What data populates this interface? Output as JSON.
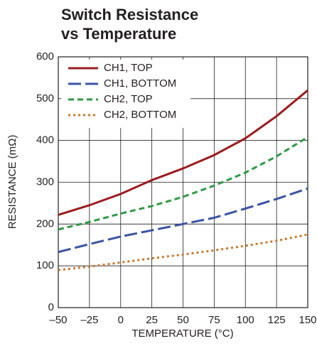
{
  "chart_data": {
    "type": "line",
    "title": [
      "Switch Resistance",
      "vs Temperature"
    ],
    "xlabel": "TEMPERATURE (°C)",
    "ylabel": "RESISTANCE (mΩ)",
    "x": [
      -50,
      -25,
      0,
      25,
      50,
      75,
      100,
      125,
      150
    ],
    "series": [
      {
        "name": "CH1, TOP",
        "color": "#9b1c1f",
        "dash": "solid",
        "values": [
          222,
          245,
          272,
          305,
          333,
          365,
          405,
          458,
          520
        ]
      },
      {
        "name": "CH1, BOTTOM",
        "color": "#3a54a4",
        "dash": "long",
        "values": [
          133,
          152,
          170,
          185,
          200,
          215,
          237,
          260,
          285
        ]
      },
      {
        "name": "CH2, TOP",
        "color": "#2e9a46",
        "dash": "medium",
        "values": [
          187,
          205,
          225,
          243,
          265,
          292,
          323,
          362,
          408
        ]
      },
      {
        "name": "CH2, BOTTOM",
        "color": "#c7782c",
        "dash": "dotted",
        "values": [
          90,
          98,
          108,
          118,
          127,
          137,
          148,
          160,
          175
        ]
      }
    ],
    "xlim": [
      -50,
      150
    ],
    "xticks": [
      {
        "value": -50,
        "label": "–50"
      },
      {
        "value": -25,
        "label": "–25"
      },
      0,
      25,
      50,
      75,
      100,
      125,
      150
    ],
    "ylim": [
      0,
      600
    ],
    "yticks": [
      0,
      100,
      200,
      300,
      400,
      500,
      600
    ],
    "grid": true,
    "legend": "upper-left"
  }
}
